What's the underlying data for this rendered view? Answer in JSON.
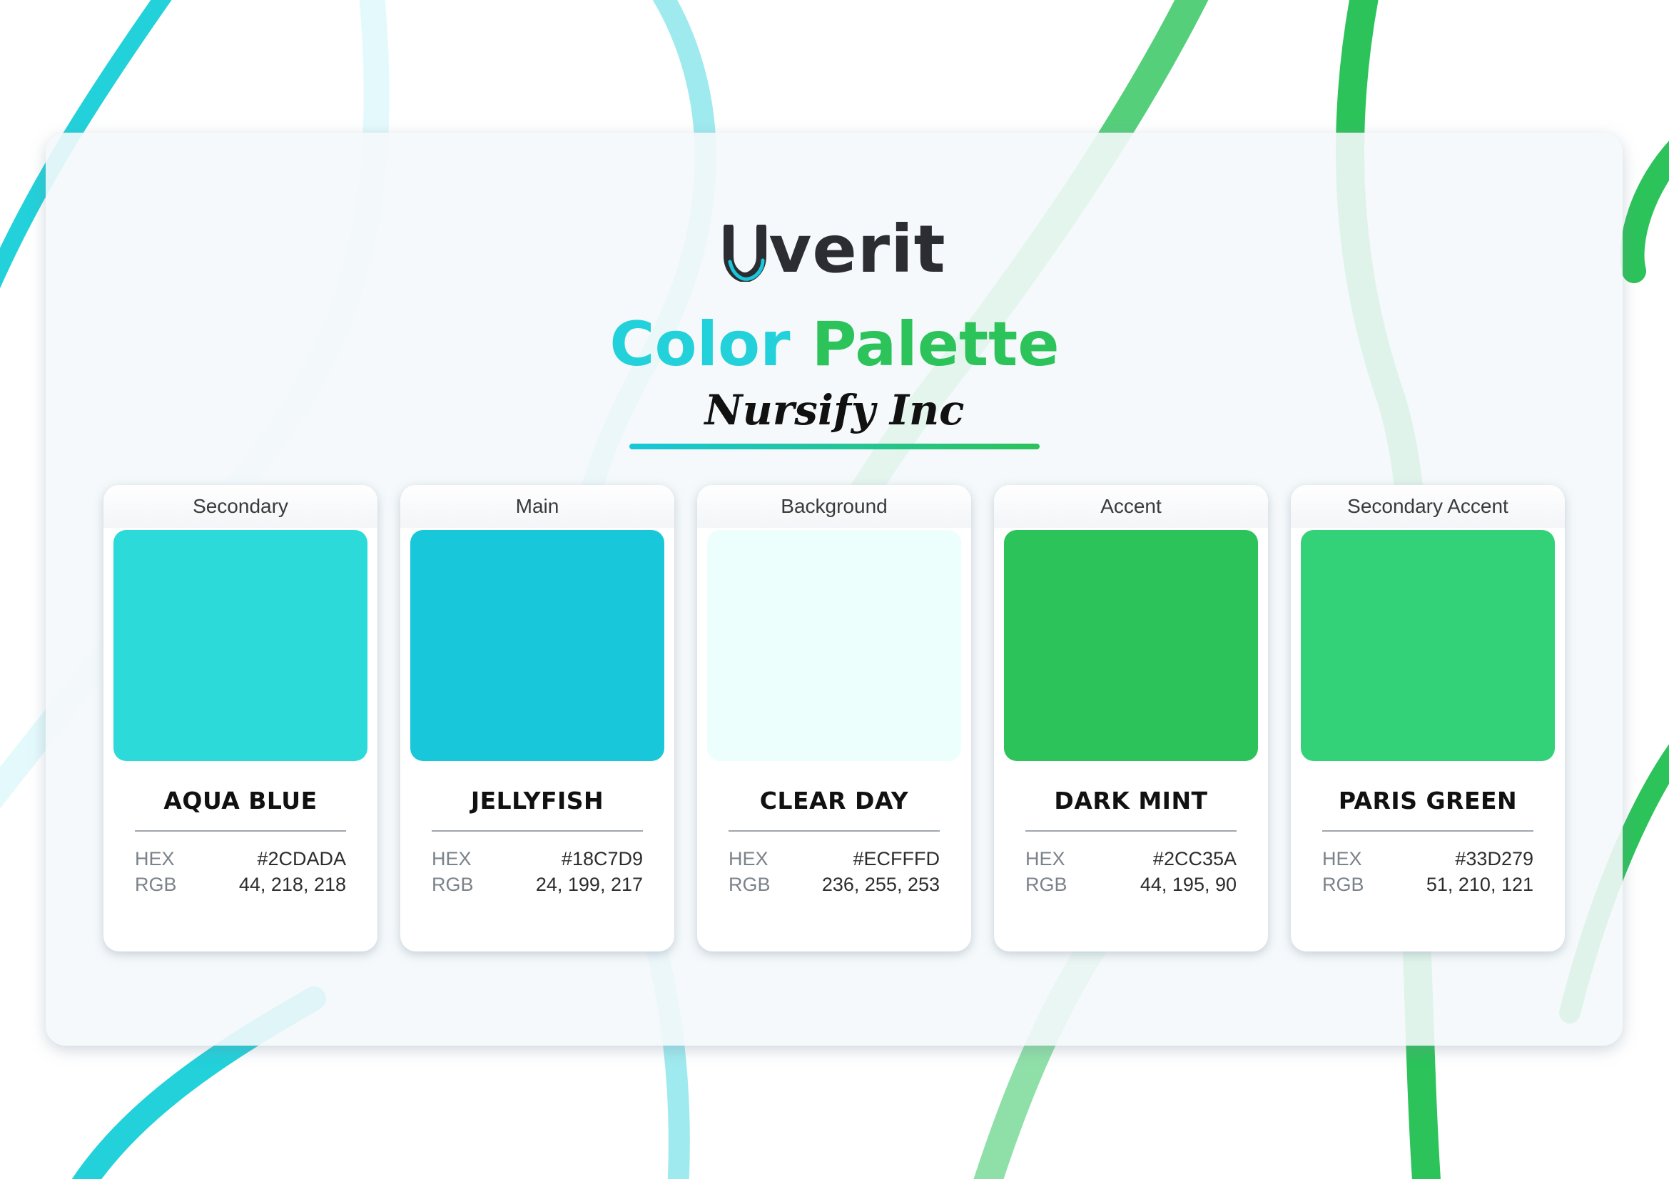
{
  "brand": {
    "name": "verit",
    "mark": "u"
  },
  "title": {
    "part1": "Color",
    "part2": "Palette"
  },
  "subtitle": "Nursify Inc",
  "labels": {
    "hex": "HEX",
    "rgb": "RGB"
  },
  "colors": [
    {
      "role": "Secondary",
      "name": "AQUA BLUE",
      "hex": "#2CDADA",
      "rgb": "44, 218, 218",
      "swatch": "#2CDADA"
    },
    {
      "role": "Main",
      "name": "JELLYFISH",
      "hex": "#18C7D9",
      "rgb": "24, 199, 217",
      "swatch": "#18C7D9"
    },
    {
      "role": "Background",
      "name": "CLEAR DAY",
      "hex": "#ECFFFD",
      "rgb": "236, 255, 253",
      "swatch": "#ECFFFD"
    },
    {
      "role": "Accent",
      "name": "DARK MINT",
      "hex": "#2CC35A",
      "rgb": "44, 195, 90",
      "swatch": "#2CC35A"
    },
    {
      "role": "Secondary Accent",
      "name": "PARIS GREEN",
      "hex": "#33D279",
      "rgb": "51, 210, 121",
      "swatch": "#33D279"
    }
  ]
}
